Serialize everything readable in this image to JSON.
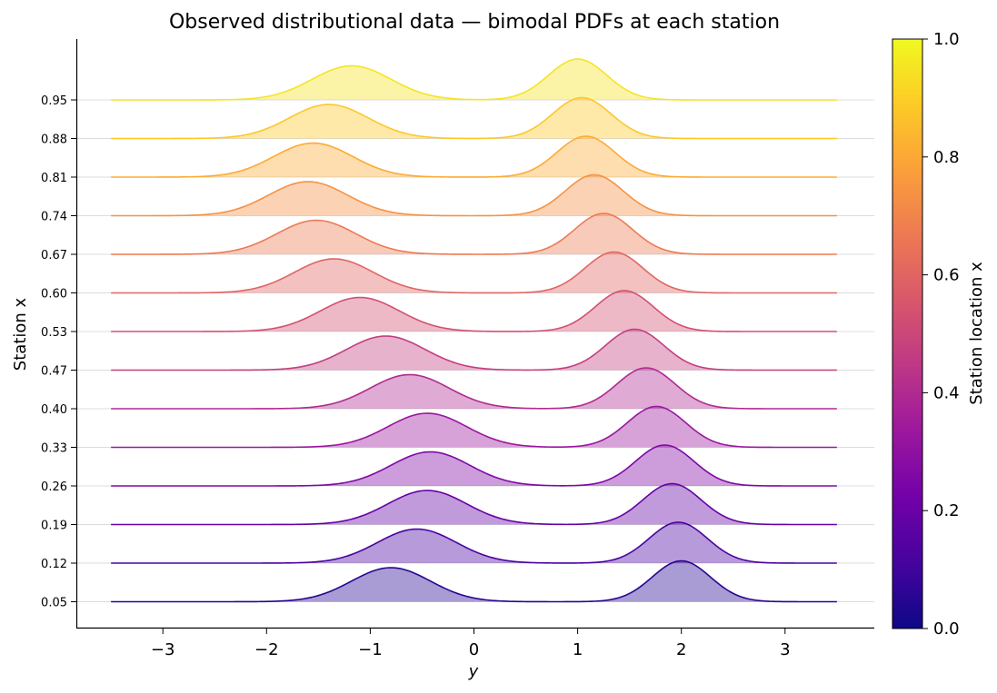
{
  "chart_data": {
    "type": "area",
    "title": "Observed distributional data — bimodal PDFs at each station",
    "xlabel": "y",
    "ylabel": "Station x",
    "xlim": [
      -3.85,
      3.85
    ],
    "x_ticks": [
      -3,
      -2,
      -1,
      0,
      1,
      2,
      3
    ],
    "x_tick_labels": [
      "−3",
      "−2",
      "−1",
      "0",
      "1",
      "2",
      "3"
    ],
    "y_range_data": [
      -3.5,
      3.5
    ],
    "grid": "horizontal baselines",
    "colormap": "plasma",
    "colorbar": {
      "label": "Station location x",
      "range": [
        0,
        1
      ],
      "ticks": [
        0.0,
        0.2,
        0.4,
        0.6,
        0.8,
        1.0
      ],
      "tick_labels": [
        "0.0",
        "0.2",
        "0.4",
        "0.6",
        "0.8",
        "1.0"
      ],
      "stops": [
        "#0d0887",
        "#46039f",
        "#7201a8",
        "#9c179e",
        "#bd3786",
        "#d8576b",
        "#ed7953",
        "#fb9f3a",
        "#fdca26",
        "#f0f921"
      ]
    },
    "series": [
      {
        "label": "0.05",
        "x": 0.05,
        "mode1_mean": -0.8,
        "mode1_sd": 0.38,
        "mode1_peak": 0.75,
        "mode2_mean": 2.0,
        "mode2_sd": 0.28,
        "mode2_peak": 0.9
      },
      {
        "label": "0.12",
        "x": 0.12,
        "mode1_mean": -0.55,
        "mode1_sd": 0.38,
        "mode1_peak": 0.75,
        "mode2_mean": 1.97,
        "mode2_sd": 0.28,
        "mode2_peak": 0.9
      },
      {
        "label": "0.19",
        "x": 0.19,
        "mode1_mean": -0.45,
        "mode1_sd": 0.38,
        "mode1_peak": 0.75,
        "mode2_mean": 1.91,
        "mode2_sd": 0.28,
        "mode2_peak": 0.9
      },
      {
        "label": "0.26",
        "x": 0.26,
        "mode1_mean": -0.42,
        "mode1_sd": 0.38,
        "mode1_peak": 0.75,
        "mode2_mean": 1.84,
        "mode2_sd": 0.28,
        "mode2_peak": 0.9
      },
      {
        "label": "0.33",
        "x": 0.33,
        "mode1_mean": -0.45,
        "mode1_sd": 0.38,
        "mode1_peak": 0.75,
        "mode2_mean": 1.76,
        "mode2_sd": 0.28,
        "mode2_peak": 0.9
      },
      {
        "label": "0.40",
        "x": 0.4,
        "mode1_mean": -0.62,
        "mode1_sd": 0.38,
        "mode1_peak": 0.75,
        "mode2_mean": 1.66,
        "mode2_sd": 0.28,
        "mode2_peak": 0.9
      },
      {
        "label": "0.47",
        "x": 0.47,
        "mode1_mean": -0.85,
        "mode1_sd": 0.38,
        "mode1_peak": 0.75,
        "mode2_mean": 1.55,
        "mode2_sd": 0.28,
        "mode2_peak": 0.9
      },
      {
        "label": "0.53",
        "x": 0.53,
        "mode1_mean": -1.1,
        "mode1_sd": 0.38,
        "mode1_peak": 0.75,
        "mode2_mean": 1.45,
        "mode2_sd": 0.28,
        "mode2_peak": 0.9
      },
      {
        "label": "0.60",
        "x": 0.6,
        "mode1_mean": -1.35,
        "mode1_sd": 0.38,
        "mode1_peak": 0.75,
        "mode2_mean": 1.35,
        "mode2_sd": 0.28,
        "mode2_peak": 0.9
      },
      {
        "label": "0.67",
        "x": 0.67,
        "mode1_mean": -1.52,
        "mode1_sd": 0.38,
        "mode1_peak": 0.75,
        "mode2_mean": 1.25,
        "mode2_sd": 0.28,
        "mode2_peak": 0.9
      },
      {
        "label": "0.74",
        "x": 0.74,
        "mode1_mean": -1.6,
        "mode1_sd": 0.38,
        "mode1_peak": 0.75,
        "mode2_mean": 1.16,
        "mode2_sd": 0.28,
        "mode2_peak": 0.9
      },
      {
        "label": "0.81",
        "x": 0.81,
        "mode1_mean": -1.55,
        "mode1_sd": 0.38,
        "mode1_peak": 0.75,
        "mode2_mean": 1.08,
        "mode2_sd": 0.28,
        "mode2_peak": 0.9
      },
      {
        "label": "0.88",
        "x": 0.88,
        "mode1_mean": -1.4,
        "mode1_sd": 0.38,
        "mode1_peak": 0.75,
        "mode2_mean": 1.04,
        "mode2_sd": 0.28,
        "mode2_peak": 0.9
      },
      {
        "label": "0.95",
        "x": 0.95,
        "mode1_mean": -1.18,
        "mode1_sd": 0.38,
        "mode1_peak": 0.75,
        "mode2_mean": 1.0,
        "mode2_sd": 0.28,
        "mode2_peak": 0.9
      }
    ]
  }
}
